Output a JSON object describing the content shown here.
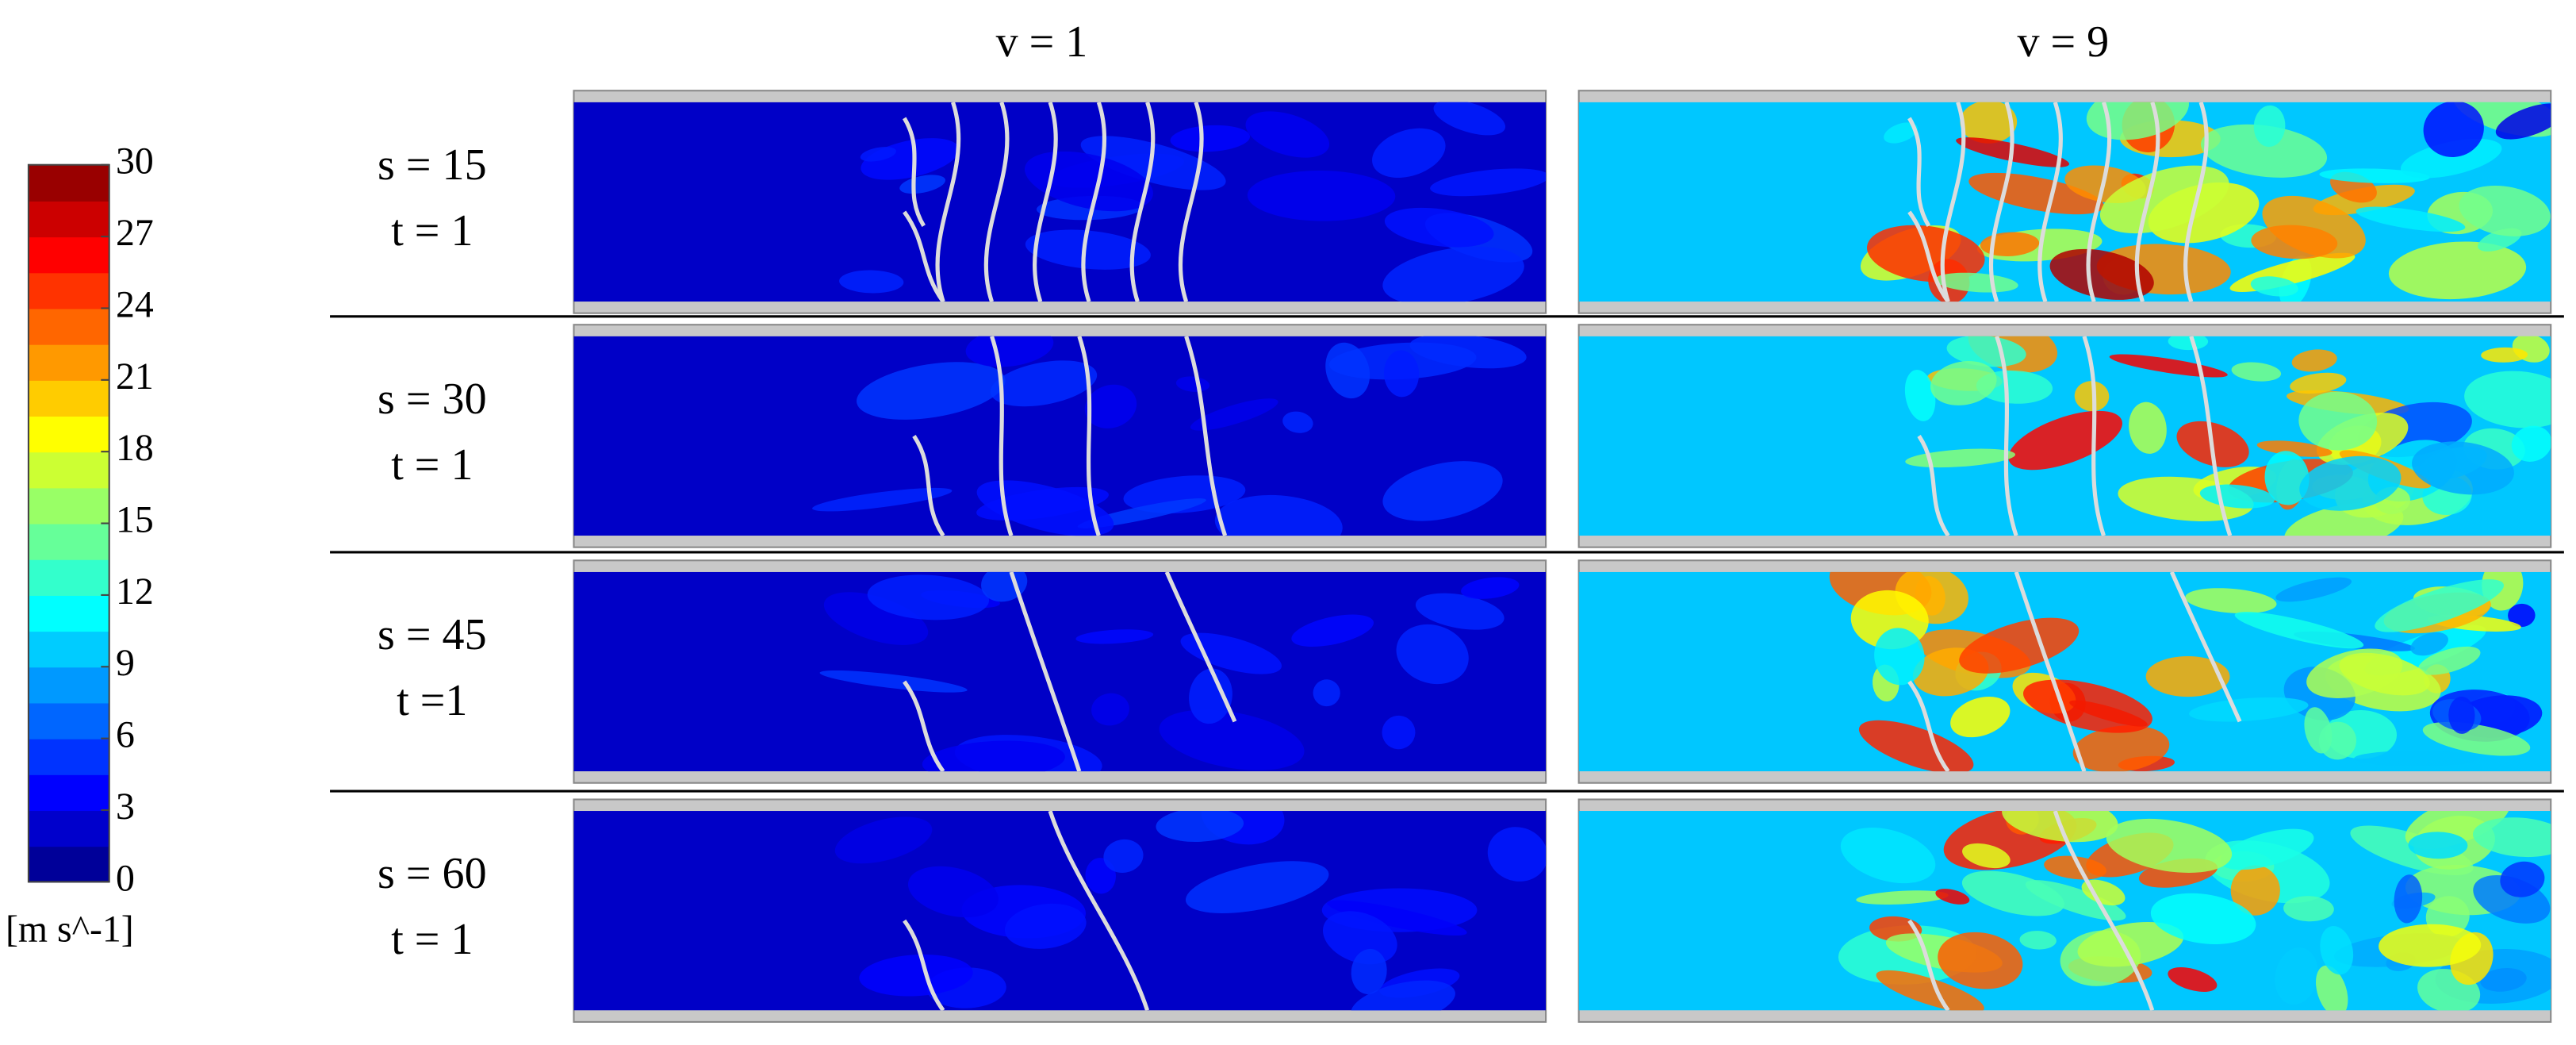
{
  "header": {
    "columns": [
      "v = 1",
      "v = 9"
    ]
  },
  "rows": [
    {
      "s": "s = 15",
      "t": "t = 1"
    },
    {
      "s": "s = 30",
      "t": "t = 1"
    },
    {
      "s": "s = 45",
      "t": "t =1"
    },
    {
      "s": "s = 60",
      "t": "t = 1"
    }
  ],
  "colorbar": {
    "lim": [
      0,
      30
    ],
    "ticks": [
      0,
      3,
      6,
      9,
      12,
      15,
      18,
      21,
      24,
      27,
      30
    ],
    "unit": "[m s^-1]"
  }
}
